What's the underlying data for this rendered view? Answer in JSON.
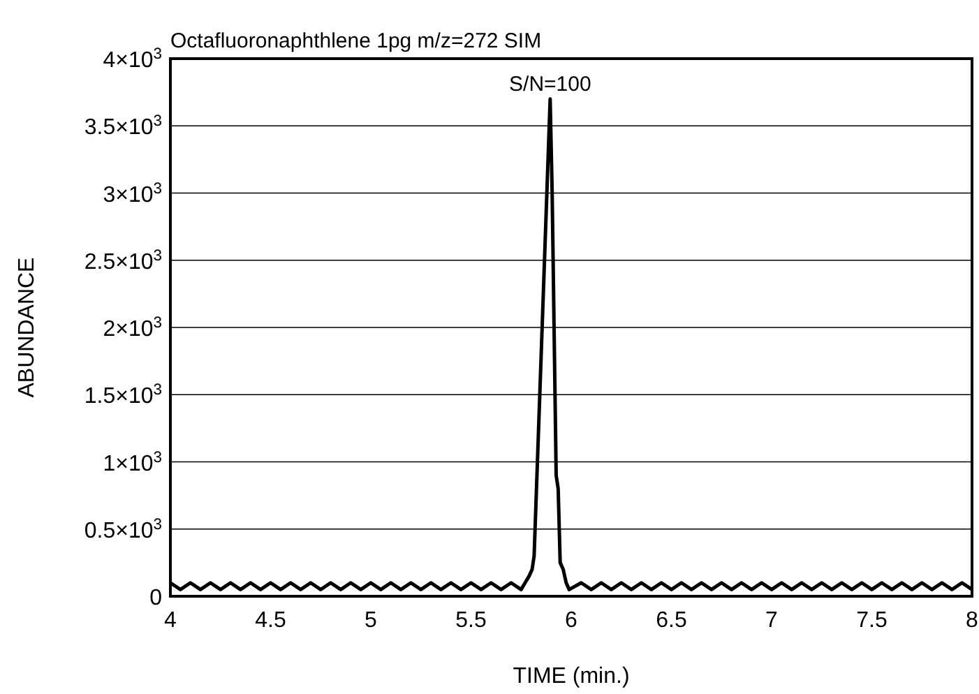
{
  "chart_data": {
    "type": "line",
    "title": "Octafluoronaphthlene 1pg m/z=272  SIM",
    "xlabel": "TIME (min.)",
    "ylabel": "ABUNDANCE",
    "xlim": [
      4,
      8
    ],
    "xticks": [
      4,
      4.5,
      5,
      5.5,
      6,
      6.5,
      7,
      7.5,
      8
    ],
    "ylim": [
      0,
      4000
    ],
    "yticks": [
      0,
      {
        "value": 500,
        "label": "0.5×10$^{3}$"
      },
      {
        "value": 1000,
        "label": "1×10$^{3}$"
      },
      {
        "value": 1500,
        "label": "1.5×10$^{3}$"
      },
      {
        "value": 2000,
        "label": "2×10$^{3}$"
      },
      {
        "value": 2500,
        "label": "2.5×10$^{3}$"
      },
      {
        "value": 3000,
        "label": "3×10$^{3}$"
      },
      {
        "value": 3500,
        "label": "3.5×10$^{3}$"
      },
      {
        "value": 4000,
        "label": "4×10$^{3}$"
      }
    ],
    "grid": "y",
    "marker": "none",
    "line_style": "solid",
    "annotations": [
      {
        "text": "S/N=100",
        "x": 5.895,
        "y": 3700
      }
    ],
    "series": [
      {
        "color": "#000000",
        "x": [
          4,
          4.05,
          4.1,
          4.15,
          4.2,
          4.25,
          4.3,
          4.35,
          4.4,
          4.45,
          4.5,
          4.55,
          4.6,
          4.65,
          4.7,
          4.75,
          4.8,
          4.85,
          4.9,
          4.95,
          5,
          5.05,
          5.1,
          5.15,
          5.2,
          5.25,
          5.3,
          5.35,
          5.4,
          5.45,
          5.5,
          5.55,
          5.6,
          5.65,
          5.7,
          5.75,
          5.77,
          5.79,
          5.805,
          5.815,
          5.895,
          5.905,
          5.925,
          5.93,
          5.935,
          5.945,
          5.96,
          5.975,
          5.99,
          6.05,
          6.1,
          6.15,
          6.2,
          6.25,
          6.3,
          6.35,
          6.4,
          6.45,
          6.5,
          6.55,
          6.6,
          6.65,
          6.7,
          6.75,
          6.8,
          6.85,
          6.9,
          6.95,
          7,
          7.05,
          7.1,
          7.15,
          7.2,
          7.25,
          7.3,
          7.35,
          7.4,
          7.45,
          7.5,
          7.55,
          7.6,
          7.65,
          7.7,
          7.75,
          7.8,
          7.85,
          7.9,
          7.95,
          8
        ],
        "values": [
          100,
          50,
          100,
          50,
          100,
          50,
          100,
          50,
          100,
          50,
          100,
          50,
          100,
          50,
          100,
          50,
          100,
          50,
          100,
          50,
          100,
          50,
          100,
          50,
          100,
          50,
          100,
          50,
          100,
          50,
          100,
          50,
          100,
          50,
          100,
          50,
          100,
          150,
          200,
          300,
          3700,
          3000,
          900,
          850,
          800,
          250,
          200,
          100,
          50,
          100,
          50,
          100,
          50,
          100,
          50,
          100,
          50,
          100,
          50,
          100,
          50,
          100,
          50,
          100,
          50,
          100,
          50,
          100,
          50,
          100,
          50,
          100,
          50,
          100,
          50,
          100,
          50,
          100,
          50,
          100,
          50,
          100,
          50,
          100,
          50,
          100,
          50,
          100,
          50
        ]
      }
    ]
  }
}
